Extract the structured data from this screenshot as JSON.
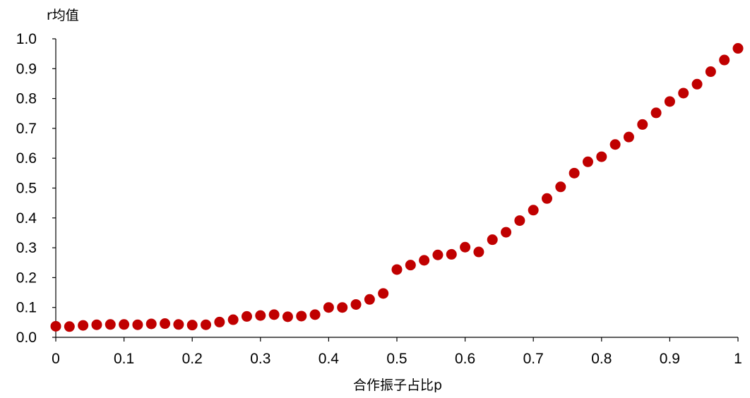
{
  "chart_data": {
    "type": "scatter",
    "title": "",
    "xlabel": "合作振子占比p",
    "ylabel": "r均值",
    "xlim": [
      0,
      1
    ],
    "ylim": [
      0,
      1
    ],
    "x_ticks": [
      0,
      0.1,
      0.2,
      0.3,
      0.4,
      0.5,
      0.6,
      0.7,
      0.8,
      0.9,
      1
    ],
    "x_tick_labels": [
      "0",
      "0.1",
      "0.2",
      "0.3",
      "0.4",
      "0.5",
      "0.6",
      "0.7",
      "0.8",
      "0.9",
      "1"
    ],
    "y_ticks": [
      0,
      0.1,
      0.2,
      0.3,
      0.4,
      0.5,
      0.6,
      0.7,
      0.8,
      0.9,
      1.0
    ],
    "y_tick_labels": [
      "0.0",
      "0.1",
      "0.2",
      "0.3",
      "0.4",
      "0.5",
      "0.6",
      "0.7",
      "0.8",
      "0.9",
      "1.0"
    ],
    "grid": false,
    "legend": "none",
    "marker_color": "#c00000",
    "series": [
      {
        "x": [
          0,
          0.02,
          0.04,
          0.06,
          0.08,
          0.1,
          0.12,
          0.14,
          0.16,
          0.18,
          0.2,
          0.22,
          0.24,
          0.26,
          0.28,
          0.3,
          0.32,
          0.34,
          0.36,
          0.38,
          0.4,
          0.42,
          0.44,
          0.46,
          0.48,
          0.5,
          0.52,
          0.54,
          0.56,
          0.58,
          0.6,
          0.62,
          0.64,
          0.66,
          0.68,
          0.7,
          0.72,
          0.74,
          0.76,
          0.78,
          0.8,
          0.82,
          0.84,
          0.86,
          0.88,
          0.9,
          0.92,
          0.94,
          0.96,
          0.98,
          1.0
        ],
        "y": [
          0.037,
          0.036,
          0.04,
          0.042,
          0.043,
          0.043,
          0.042,
          0.045,
          0.046,
          0.043,
          0.041,
          0.042,
          0.051,
          0.059,
          0.07,
          0.073,
          0.076,
          0.069,
          0.071,
          0.076,
          0.1,
          0.1,
          0.11,
          0.127,
          0.147,
          0.227,
          0.242,
          0.258,
          0.276,
          0.278,
          0.302,
          0.286,
          0.327,
          0.352,
          0.391,
          0.426,
          0.465,
          0.504,
          0.55,
          0.588,
          0.605,
          0.646,
          0.671,
          0.713,
          0.752,
          0.79,
          0.818,
          0.848,
          0.89,
          0.929,
          0.968
        ]
      }
    ]
  }
}
